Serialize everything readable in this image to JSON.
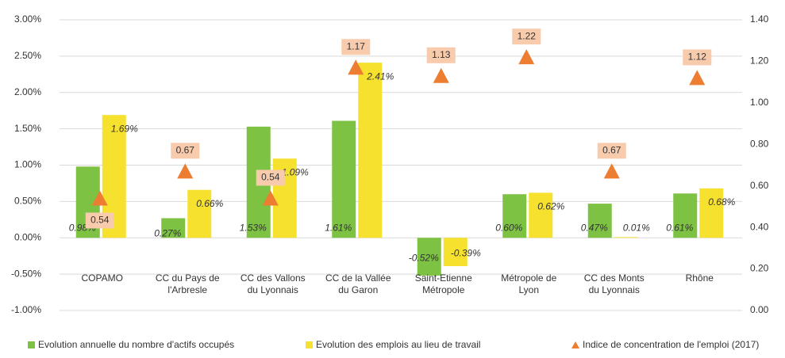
{
  "chart_data": {
    "type": "bar",
    "categories": [
      "COPAMO",
      "CC du Pays de\nl'Arbresle",
      "CC des Vallons\ndu Lyonnais",
      "CC de la Vallée\ndu Garon",
      "Saint-Etienne\nMétropole",
      "Métropole de\nLyon",
      "CC des Monts\ndu Lyonnais",
      "Rhône"
    ],
    "series": [
      {
        "name": "Evolution annuelle du nombre d'actifs occupés",
        "color": "#7dc243",
        "values": [
          0.98,
          0.27,
          1.53,
          1.61,
          -0.52,
          0.6,
          0.47,
          0.61
        ],
        "value_labels": [
          "0.98%",
          "0.27%",
          "1.53%",
          "1.61%",
          "-0.52%",
          "0.60%",
          "0.47%",
          "0.61%"
        ]
      },
      {
        "name": "Evolution des emplois au lieu de travail",
        "color": "#f5e12e",
        "values": [
          1.69,
          0.66,
          1.09,
          2.41,
          -0.39,
          0.62,
          0.01,
          0.68
        ],
        "value_labels": [
          "1.69%",
          "0.66%",
          "1.09%",
          "2.41%",
          "-0.39%",
          "0.62%",
          "0.01%",
          "0.68%"
        ]
      },
      {
        "name": "Indice de concentration de l'emploi (2017)",
        "color": "#ed7d31",
        "type": "triangle",
        "axis": "y2",
        "values": [
          0.54,
          0.67,
          0.54,
          1.17,
          1.13,
          1.22,
          0.67,
          1.12
        ]
      }
    ],
    "ylim": [
      -1,
      3
    ],
    "yticks": [
      {
        "value": -1,
        "label": "-1.00%"
      },
      {
        "value": -0.5,
        "label": "-0.50%"
      },
      {
        "value": 0,
        "label": "0.00%"
      },
      {
        "value": 0.5,
        "label": "0.50%"
      },
      {
        "value": 1,
        "label": "1.00%"
      },
      {
        "value": 1.5,
        "label": "1.50%"
      },
      {
        "value": 2,
        "label": "2.00%"
      },
      {
        "value": 2.5,
        "label": "2.50%"
      },
      {
        "value": 3,
        "label": "3.00%"
      }
    ],
    "y2lim": [
      0,
      1.4
    ],
    "y2ticks": [
      {
        "value": 0,
        "label": "0.00"
      },
      {
        "value": 0.2,
        "label": "0.20"
      },
      {
        "value": 0.4,
        "label": "0.40"
      },
      {
        "value": 0.6,
        "label": "0.60"
      },
      {
        "value": 0.8,
        "label": "0.80"
      },
      {
        "value": 1,
        "label": "1.00"
      },
      {
        "value": 1.2,
        "label": "1.20"
      },
      {
        "value": 1.4,
        "label": "1.40"
      }
    ],
    "grid": true,
    "legend": "bottom"
  }
}
